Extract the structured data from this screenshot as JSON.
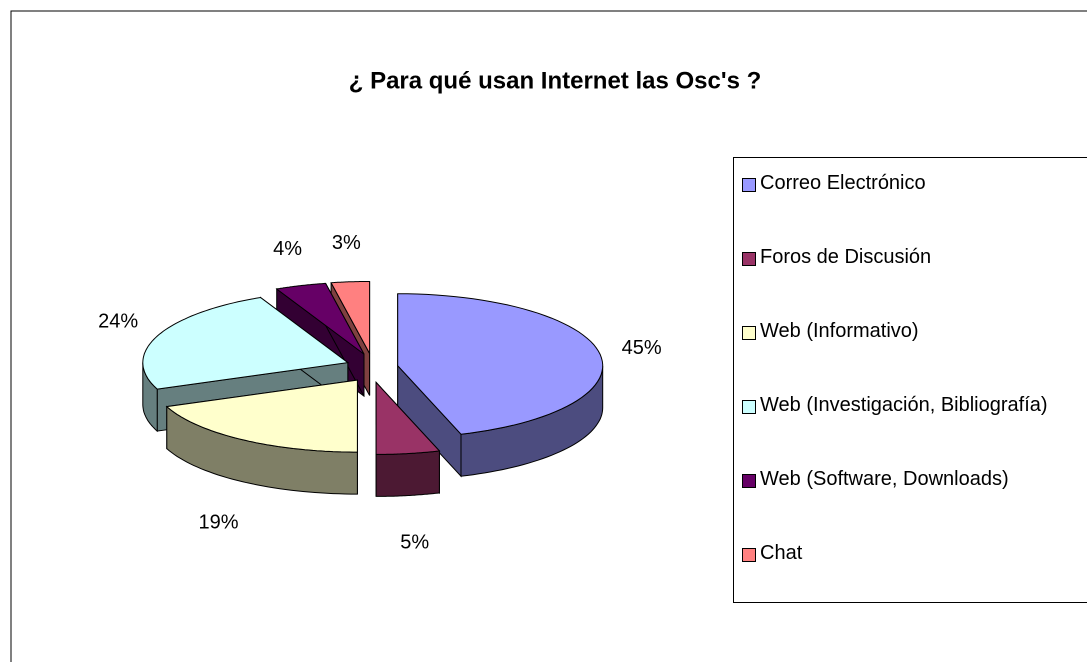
{
  "chart_data": {
    "type": "pie",
    "title": "¿ Para qué usan Internet las Osc's ?",
    "categories": [
      "Correo Electrónico",
      "Foros de Discusión",
      "Web (Informativo)",
      "Web (Investigación, Bibliografía)",
      "Web (Software, Downloads)",
      "Chat"
    ],
    "values": [
      45,
      5,
      19,
      24,
      4,
      3
    ],
    "value_labels": [
      "45%",
      "5%",
      "19%",
      "24%",
      "4%",
      "3%"
    ],
    "colors": [
      "#9999ff",
      "#993366",
      "#ffffcc",
      "#ccffff",
      "#660066",
      "#ff8080"
    ],
    "legend": "right"
  }
}
